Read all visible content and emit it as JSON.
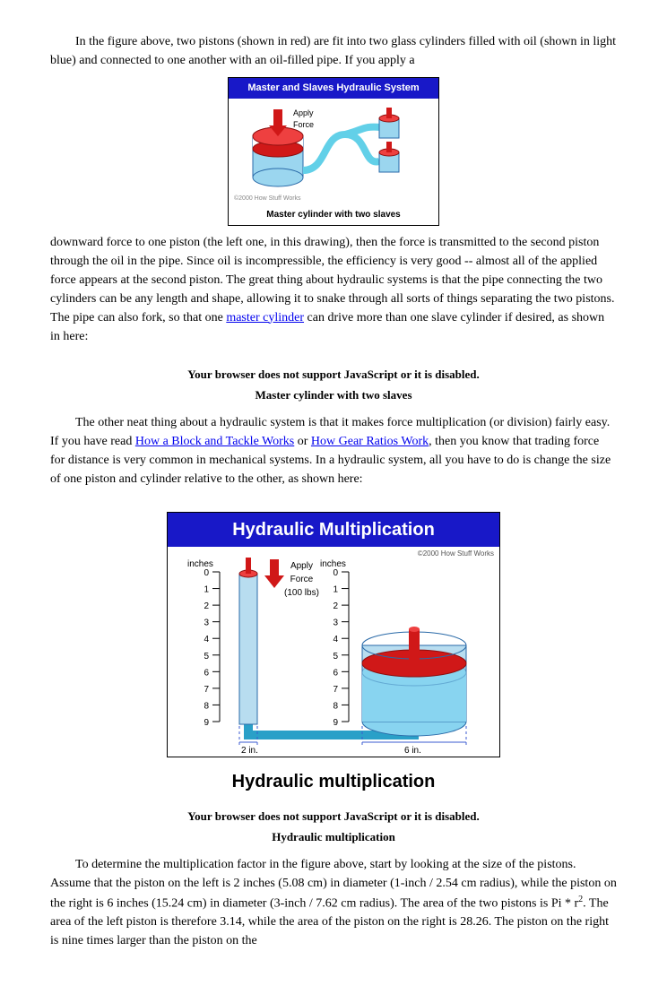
{
  "para1_lead": "In the figure above, two pistons (shown in red) are fit into two glass cylinders filled with oil (shown in light blue) and connected to one another with an oil-filled pipe. If you apply a ",
  "fig1": {
    "header": "Master and Slaves Hydraulic System",
    "apply": "Apply",
    "force": "Force",
    "caption": "Master cylinder with two slaves",
    "colors": {
      "header_bg": "#1818c8",
      "pipe": "#62d0e8",
      "oil": "#9bd6ef",
      "piston": "#d01818",
      "piston_dark": "#8e0e0e",
      "cyl_stroke": "#2a6aa8"
    }
  },
  "para1_tail_a": "downward force to one piston (the left one, in this drawing), then the force is transmitted to the second piston through the oil in the pipe. Since oil is incompressible, the efficiency is very good -- almost all of the applied force appears at the second piston. The great thing about hydraulic systems is that the pipe connecting the two cylinders can be any length and shape, allowing it to snake through all sorts of things separating the two pistons. The pipe can also fork, so that one ",
  "link_master": "master cylinder",
  "para1_tail_b": " can drive more than one slave cylinder if desired, as shown in here:",
  "js_warn": "Your browser does not support JavaScript or it is disabled.",
  "caption_master": "Master cylinder with two slaves",
  "para2_a": "The other neat thing about a hydraulic system is that it makes force multiplication (or division) fairly easy. If you have read ",
  "link_block": "How a Block and Tackle Works",
  "para2_b": " or ",
  "link_gear": "How Gear Ratios Work",
  "para2_c": ", then you know that trading force for distance is very common in mechanical systems. In a hydraulic system, all you have to do is change the size of one piston and cylinder relative to the other, as shown here:",
  "fig2": {
    "header": "Hydraulic Multiplication",
    "copyright": "©2000 How Stuff Works",
    "inches": "inches",
    "apply": "Apply",
    "force": "Force",
    "force_val": "(100 lbs)",
    "left_width": "2 in.",
    "right_width": "6 in.",
    "scale": [
      "0",
      "1",
      "2",
      "3",
      "4",
      "5",
      "6",
      "7",
      "8",
      "9"
    ],
    "caption": "Hydraulic multiplication",
    "colors": {
      "header_bg": "#1818c8",
      "pipe": "#2aa0c8",
      "water": "#88d4f0",
      "piston": "#d01818",
      "piston_top": "#ee4040",
      "cyl_side": "#b8ddf0",
      "cyl_stroke": "#2a6aa8",
      "dashed": "#3b5bd0"
    }
  },
  "caption_mult": "Hydraulic multiplication",
  "para3_a": "To determine the multiplication factor in the figure above, start by looking at the size of the pistons. Assume that the piston on the left is 2 inches (5.08 cm) in diameter (1-inch / 2.54 cm radius), while the piston on the right is 6 inches (15.24 cm) in diameter (3-inch / 7.62 cm radius). The area of the two pistons is Pi * r",
  "para3_sup": "2",
  "para3_b": ". The area of the left piston is therefore 3.14, while the area of the piston on the right is 28.26. The piston on the right is nine times larger than the piston on the"
}
